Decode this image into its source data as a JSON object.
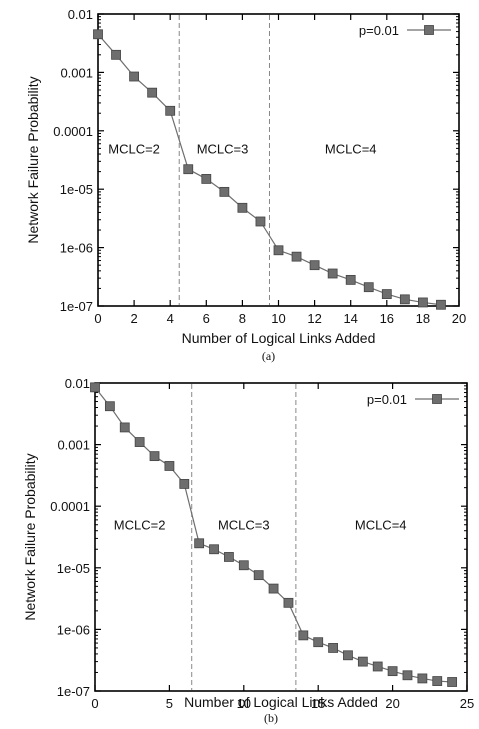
{
  "chart_data": [
    {
      "type": "line",
      "caption": "(a)",
      "xlabel": "Number of Logical Links Added",
      "ylabel": "Network Failure Probability",
      "xlim": [
        0,
        20
      ],
      "ylim": [
        1e-07,
        0.01
      ],
      "yscale": "log",
      "x_ticks": [
        0,
        2,
        4,
        6,
        8,
        10,
        12,
        14,
        16,
        18,
        20
      ],
      "y_ticks": [
        {
          "value": 0.01,
          "label": "0.01"
        },
        {
          "value": 0.001,
          "label": "0.001"
        },
        {
          "value": 0.0001,
          "label": "0.0001"
        },
        {
          "value": 1e-05,
          "label": "1e-05"
        },
        {
          "value": 1e-06,
          "label": "1e-06"
        },
        {
          "value": 1e-07,
          "label": "1e-07"
        }
      ],
      "legend_position": "top-right",
      "series": [
        {
          "name": "p=0.01",
          "color": "#6e6e6e",
          "x": [
            0,
            1,
            2,
            3,
            4,
            5,
            6,
            7,
            8,
            9,
            10,
            11,
            12,
            13,
            14,
            15,
            16,
            17,
            18,
            19
          ],
          "y": [
            0.0045,
            0.002,
            0.00085,
            0.00045,
            0.00022,
            2.2e-05,
            1.5e-05,
            9e-06,
            4.8e-06,
            2.8e-06,
            9e-07,
            7e-07,
            5e-07,
            3.6e-07,
            2.8e-07,
            2.1e-07,
            1.6e-07,
            1.3e-07,
            1.15e-07,
            1.05e-07
          ]
        }
      ],
      "region_dividers": [
        4.5,
        9.5
      ],
      "regions": [
        {
          "label": "MCLC=2",
          "x": 2.0,
          "y": 5e-05
        },
        {
          "label": "MCLC=3",
          "x": 6.9,
          "y": 5e-05
        },
        {
          "label": "MCLC=4",
          "x": 14.0,
          "y": 5e-05
        }
      ]
    },
    {
      "type": "line",
      "caption": "(b)",
      "xlabel": "Number of Logical Links Added",
      "ylabel": "Network Failure Probability",
      "xlim": [
        0,
        25
      ],
      "ylim": [
        1e-07,
        0.01
      ],
      "yscale": "log",
      "x_ticks": [
        0,
        5,
        10,
        15,
        20,
        25
      ],
      "y_ticks": [
        {
          "value": 0.01,
          "label": "0.01"
        },
        {
          "value": 0.001,
          "label": "0.001"
        },
        {
          "value": 0.0001,
          "label": "0.0001"
        },
        {
          "value": 1e-05,
          "label": "1e-05"
        },
        {
          "value": 1e-06,
          "label": "1e-06"
        },
        {
          "value": 1e-07,
          "label": "1e-07"
        }
      ],
      "legend_position": "top-right",
      "series": [
        {
          "name": "p=0.01",
          "color": "#6e6e6e",
          "x": [
            0,
            1,
            2,
            3,
            4,
            5,
            6,
            7,
            8,
            9,
            10,
            11,
            12,
            13,
            14,
            15,
            16,
            17,
            18,
            19,
            20,
            21,
            22,
            23,
            24
          ],
          "y": [
            0.0085,
            0.0042,
            0.0019,
            0.0011,
            0.00065,
            0.00045,
            0.00023,
            2.5e-05,
            2e-05,
            1.5e-05,
            1.1e-05,
            7.6e-06,
            4.6e-06,
            2.7e-06,
            8e-07,
            6.2e-07,
            5e-07,
            3.8e-07,
            3e-07,
            2.5e-07,
            2.1e-07,
            1.8e-07,
            1.6e-07,
            1.45e-07,
            1.4e-07
          ]
        }
      ],
      "region_dividers": [
        6.5,
        13.5
      ],
      "regions": [
        {
          "label": "MCLC=2",
          "x": 3.0,
          "y": 5e-05
        },
        {
          "label": "MCLC=3",
          "x": 10.0,
          "y": 5e-05
        },
        {
          "label": "MCLC=4",
          "x": 19.2,
          "y": 5e-05
        }
      ]
    }
  ]
}
